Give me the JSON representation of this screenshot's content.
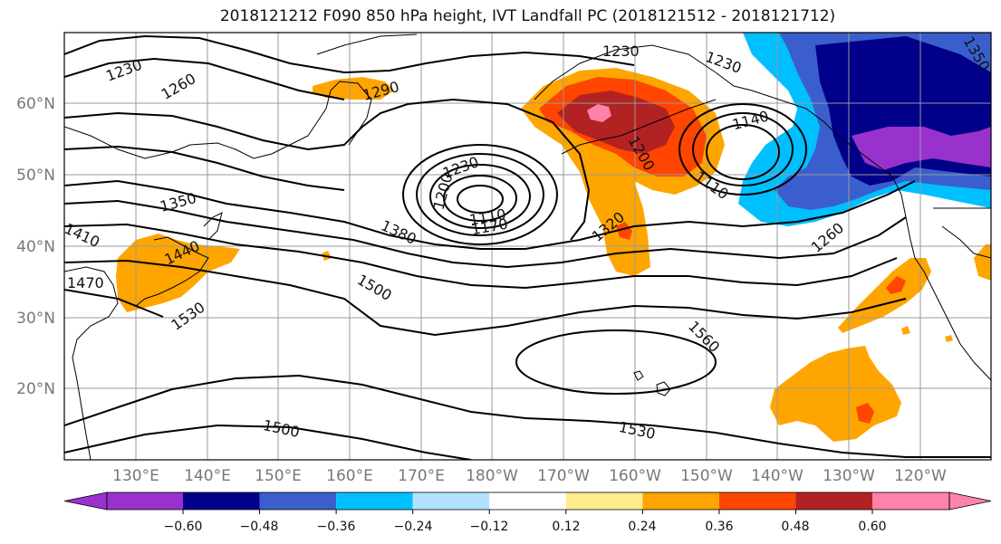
{
  "title": "2018121212 F090 850 hPa height, IVT Landfall PC (2018121512 - 2018121712)",
  "map": {
    "lat_labels": [
      "60°N",
      "50°N",
      "40°N",
      "30°N",
      "20°N"
    ],
    "lon_labels": [
      "130°E",
      "140°E",
      "150°E",
      "160°E",
      "170°E",
      "180°W",
      "170°W",
      "160°W",
      "150°W",
      "140°W",
      "130°W",
      "120°W"
    ],
    "contour_labels": [
      "1230",
      "1260",
      "1290",
      "1230",
      "1230",
      "1230",
      "1350",
      "1200",
      "1110",
      "1170",
      "1380",
      "1410",
      "1440",
      "1470",
      "1530",
      "1500",
      "1320",
      "1200",
      "1140",
      "1110",
      "1260",
      "1350",
      "1560",
      "1500",
      "1530"
    ]
  },
  "colorbar": {
    "colors": [
      "#9932cc",
      "#00008b",
      "#3a5fcd",
      "#00bfff",
      "#b0e2ff",
      "#ffffff",
      "#ffec8b",
      "#ffa500",
      "#ff4500",
      "#b22222",
      "#ff82ab"
    ],
    "tick_labels": [
      "−0.60",
      "−0.48",
      "−0.36",
      "−0.24",
      "−0.12",
      "0.12",
      "0.24",
      "0.36",
      "0.48",
      "0.60"
    ]
  }
}
